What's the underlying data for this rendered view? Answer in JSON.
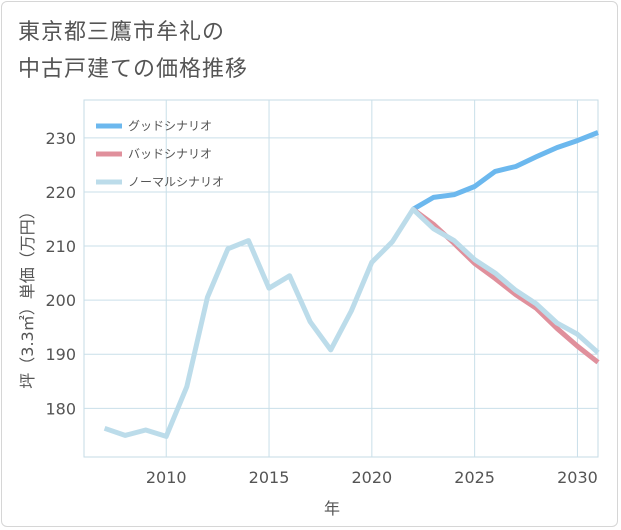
{
  "title": {
    "line1": "東京都三鷹市牟礼の",
    "line2": "中古戸建ての価格推移"
  },
  "chart_data": {
    "type": "line",
    "title": "東京都三鷹市牟礼の中古戸建ての価格推移",
    "xlabel": "年",
    "ylabel": "坪（3.3㎡）単価（万円）",
    "xlim": [
      2006,
      2031
    ],
    "ylim": [
      171,
      237
    ],
    "xticks": [
      2010,
      2015,
      2020,
      2025,
      2030
    ],
    "yticks": [
      180,
      190,
      200,
      210,
      220,
      230
    ],
    "grid": true,
    "legend_position": "top-left",
    "series": [
      {
        "name": "グッドシナリオ",
        "color": "#6cb8ee",
        "x": [
          2022,
          2023,
          2024,
          2025,
          2026,
          2027,
          2028,
          2029,
          2030,
          2031
        ],
        "y": [
          216.8,
          219.0,
          219.5,
          221.0,
          223.8,
          224.7,
          226.5,
          228.2,
          229.5,
          231.0
        ]
      },
      {
        "name": "バッドシナリオ",
        "color": "#e0909c",
        "x": [
          2022,
          2023,
          2024,
          2025,
          2026,
          2027,
          2028,
          2029,
          2030,
          2031
        ],
        "y": [
          216.8,
          214.0,
          210.5,
          206.8,
          204.0,
          201.0,
          198.5,
          194.8,
          191.5,
          188.5
        ]
      },
      {
        "name": "ノーマルシナリオ",
        "color": "#bcdcea",
        "x": [
          2007,
          2008,
          2009,
          2010,
          2011,
          2012,
          2013,
          2014,
          2015,
          2016,
          2017,
          2018,
          2019,
          2020,
          2021,
          2022,
          2023,
          2024,
          2025,
          2026,
          2027,
          2028,
          2029,
          2030,
          2031
        ],
        "y": [
          176.3,
          175.0,
          176.0,
          174.8,
          184.0,
          200.5,
          209.5,
          211.0,
          202.2,
          204.5,
          196.0,
          190.8,
          198.0,
          207.0,
          210.8,
          216.8,
          213.2,
          211.0,
          207.5,
          205.0,
          201.8,
          199.3,
          195.8,
          193.7,
          190.3
        ]
      }
    ]
  }
}
